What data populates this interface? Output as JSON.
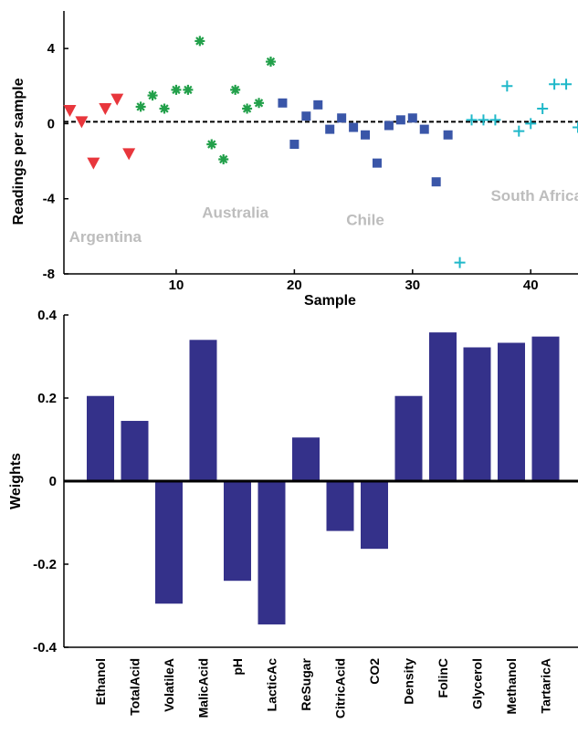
{
  "chart_data": [
    {
      "type": "scatter",
      "xlabel": "Sample",
      "ylabel": "Readings per sample",
      "xlim": [
        0.5,
        44
      ],
      "ylim": [
        -8,
        6
      ],
      "x_ticks": [
        10,
        20,
        30,
        40
      ],
      "y_ticks": [
        -8,
        -4,
        0,
        4
      ],
      "reference_line": 0.1,
      "grid": false,
      "group_labels": [
        {
          "text": "Argentina",
          "x": 4,
          "y": -6.3
        },
        {
          "text": "Australia",
          "x": 15,
          "y": -5
        },
        {
          "text": "Chile",
          "x": 26,
          "y": -5.4
        },
        {
          "text": "South Africa",
          "x": 40.5,
          "y": -4.1
        }
      ],
      "series": [
        {
          "name": "Argentina",
          "marker": "triangle-down",
          "color": "#e8363c",
          "points": [
            [
              1,
              0.7
            ],
            [
              2,
              0.1
            ],
            [
              3,
              -2.1
            ],
            [
              4,
              0.8
            ],
            [
              5,
              1.3
            ],
            [
              6,
              -1.6
            ]
          ]
        },
        {
          "name": "Australia",
          "marker": "asterisk",
          "color": "#22a04a",
          "points": [
            [
              7,
              0.9
            ],
            [
              8,
              1.5
            ],
            [
              9,
              0.8
            ],
            [
              10,
              1.8
            ],
            [
              11,
              1.8
            ],
            [
              12,
              4.4
            ],
            [
              13,
              -1.1
            ],
            [
              14,
              -1.9
            ],
            [
              15,
              1.8
            ],
            [
              16,
              0.8
            ],
            [
              17,
              1.1
            ],
            [
              18,
              3.3
            ]
          ]
        },
        {
          "name": "Chile",
          "marker": "square",
          "color": "#3a56a8",
          "points": [
            [
              19,
              1.1
            ],
            [
              20,
              -1.1
            ],
            [
              21,
              0.4
            ],
            [
              22,
              1.0
            ],
            [
              23,
              -0.3
            ],
            [
              24,
              0.3
            ],
            [
              25,
              -0.2
            ],
            [
              26,
              -0.6
            ],
            [
              27,
              -2.1
            ],
            [
              28,
              -0.1
            ],
            [
              29,
              0.2
            ],
            [
              30,
              0.3
            ],
            [
              31,
              -0.3
            ],
            [
              32,
              -3.1
            ],
            [
              33,
              -0.6
            ]
          ]
        },
        {
          "name": "South Africa",
          "marker": "plus",
          "color": "#1fb8c9",
          "points": [
            [
              34,
              -7.4
            ],
            [
              35,
              0.2
            ],
            [
              36,
              0.2
            ],
            [
              37,
              0.2
            ],
            [
              38,
              2.0
            ],
            [
              39,
              -0.4
            ],
            [
              40,
              0.0
            ],
            [
              41,
              0.8
            ],
            [
              42,
              2.1
            ],
            [
              43,
              2.1
            ],
            [
              44,
              -0.2
            ]
          ]
        }
      ]
    },
    {
      "type": "bar",
      "ylabel": "Weights",
      "xlabel": "",
      "ylim": [
        -0.4,
        0.4
      ],
      "y_ticks": [
        -0.4,
        -0.2,
        0,
        0.2,
        0.4
      ],
      "bar_color": "#34318a",
      "categories": [
        "Ethanol",
        "TotalAcid",
        "VolatileA",
        "MalicAcid",
        "pH",
        "LacticAc",
        "ReSugar",
        "CitricAcid",
        "CO2",
        "Density",
        "FolinC",
        "Glycerol",
        "Methanol",
        "TartaricA"
      ],
      "values": [
        0.205,
        0.145,
        -0.295,
        0.34,
        -0.24,
        -0.345,
        0.105,
        -0.12,
        -0.163,
        0.205,
        0.358,
        0.322,
        0.333,
        0.348
      ]
    }
  ]
}
